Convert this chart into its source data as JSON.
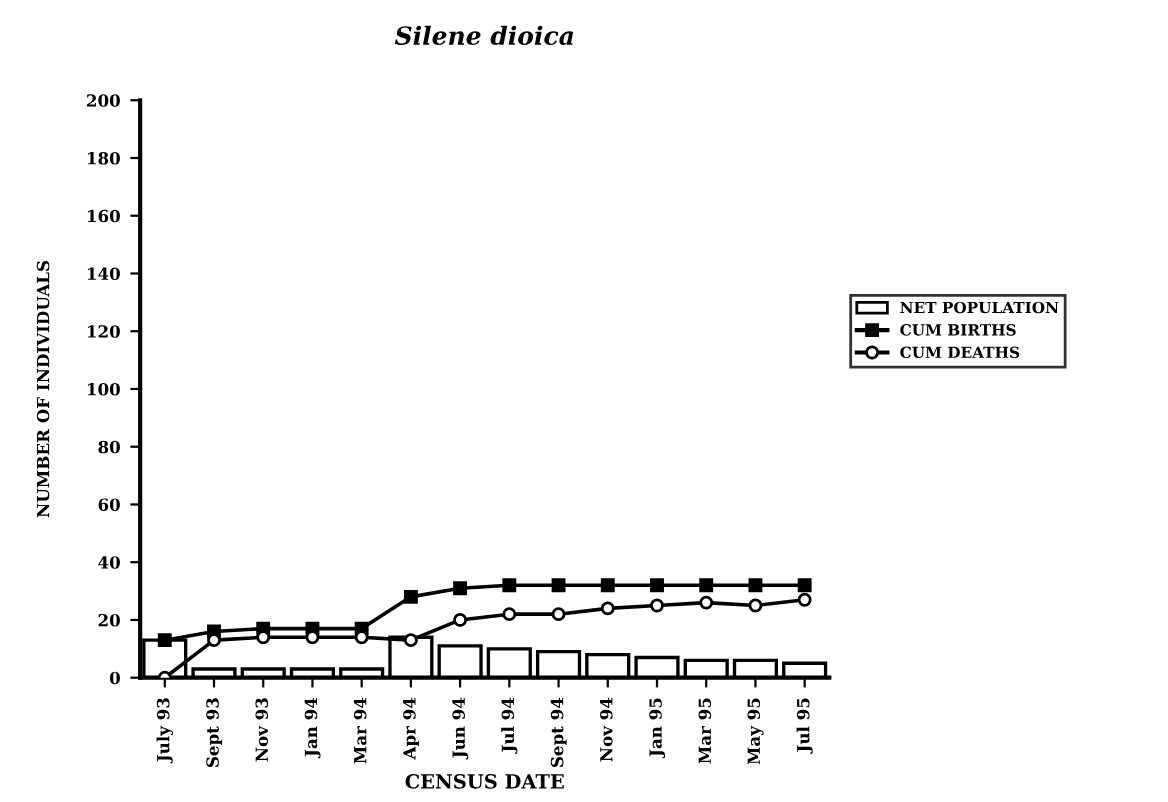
{
  "chart_data": {
    "type": "bar",
    "title": "Silene dioica",
    "xlabel": "CENSUS DATE",
    "ylabel": "NUMBER OF INDIVIDUALS",
    "categories": [
      "July 93",
      "Sept 93",
      "Nov 93",
      "Jan 94",
      "Mar 94",
      "Apr 94",
      "Jun 94",
      "Jul 94",
      "Sept 94",
      "Nov 94",
      "Jan 95",
      "Mar 95",
      "May 95",
      "Jul 95"
    ],
    "series": [
      {
        "name": "NET POPULATION",
        "color": "#ffffff",
        "values": [
          13,
          3,
          3,
          3,
          3,
          14,
          11,
          10,
          9,
          8,
          7,
          6,
          6,
          5
        ]
      },
      {
        "name": "CUM BIRTHS",
        "type": "line",
        "color": "#000000",
        "marker": "square",
        "values": [
          13,
          16,
          17,
          17,
          17,
          28,
          31,
          32,
          32,
          32,
          32,
          32,
          32,
          32
        ]
      },
      {
        "name": "CUM DEATHS",
        "type": "line",
        "color": "#000000",
        "marker": "circle",
        "values": [
          0,
          13,
          14,
          14,
          14,
          13,
          20,
          22,
          22,
          24,
          25,
          26,
          25,
          27
        ]
      }
    ],
    "ylim": [
      0,
      200
    ],
    "yticks": [
      0,
      20,
      40,
      60,
      80,
      100,
      120,
      140,
      160,
      180,
      200
    ],
    "grid": false,
    "legend": "right"
  }
}
